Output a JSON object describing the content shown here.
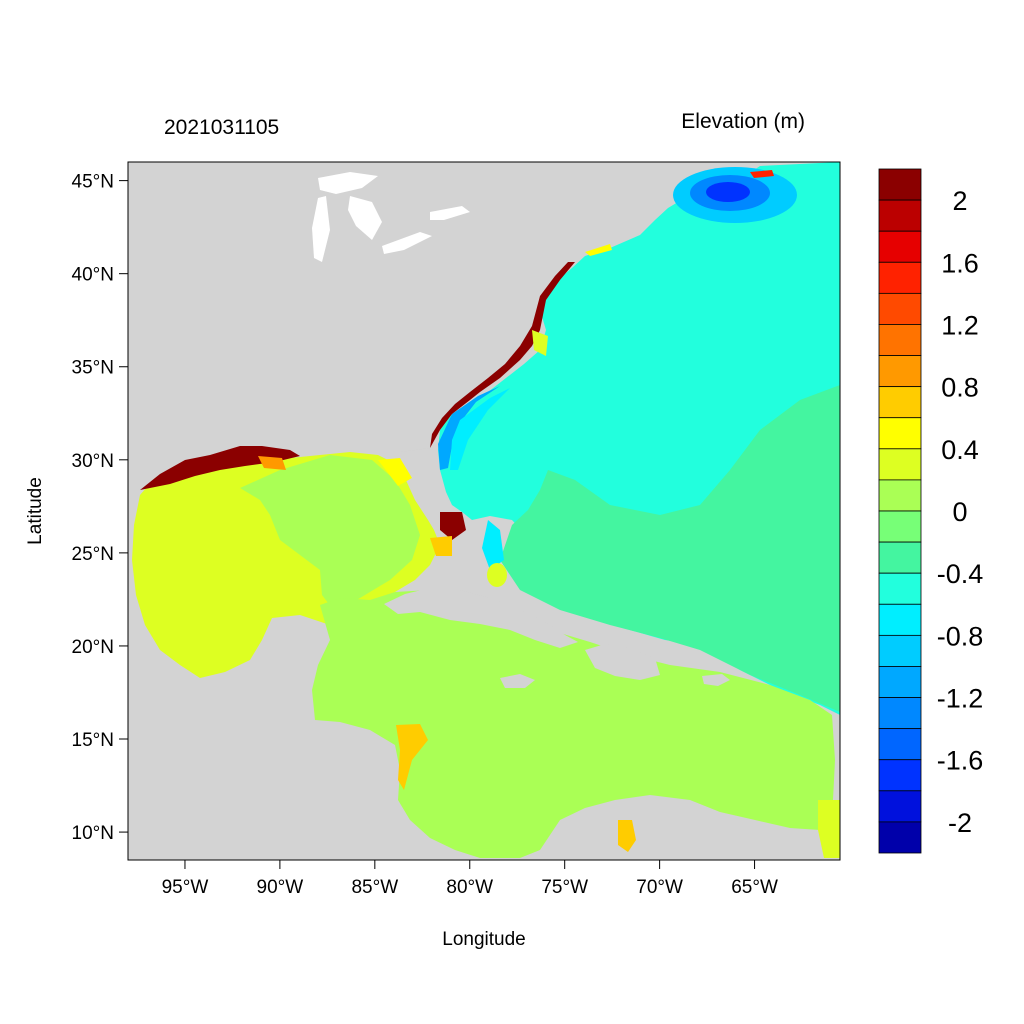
{
  "header": {
    "timestamp": "2021031105",
    "variable_title": "Elevation (m)"
  },
  "axes": {
    "xlabel": "Longitude",
    "ylabel": "Latitude",
    "x_ticks": [
      "95°W",
      "90°W",
      "85°W",
      "80°W",
      "75°W",
      "70°W",
      "65°W"
    ],
    "y_ticks": [
      "45°N",
      "40°N",
      "35°N",
      "30°N",
      "25°N",
      "20°N",
      "15°N",
      "10°N"
    ],
    "lon_range": [
      -98,
      -60.5
    ],
    "lat_range": [
      8.5,
      46
    ]
  },
  "colorbar": {
    "labels": [
      "2",
      "1.6",
      "1.2",
      "0.8",
      "0.4",
      "0",
      "-0.4",
      "-0.8",
      "-1.2",
      "-1.6",
      "-2"
    ],
    "colors": [
      "#8b0000",
      "#bb0000",
      "#e60000",
      "#ff2200",
      "#ff4a00",
      "#ff7300",
      "#ff9900",
      "#ffcc00",
      "#ffff00",
      "#ddff22",
      "#aaff55",
      "#77ff77",
      "#44f5a0",
      "#22ffdd",
      "#00eeff",
      "#00ccff",
      "#00a8ff",
      "#0088ff",
      "#0066ff",
      "#0033ff",
      "#0011dd",
      "#0000aa"
    ]
  },
  "colors": {
    "land": "#d3d3d3",
    "atlantic": "#22ffdd",
    "gulf": "#ddff22",
    "caribbean": "#aaff55",
    "negative_band": "#44f5a0",
    "gulf_of_maine": "#0044ff",
    "surge_high": "#8b0000"
  }
}
